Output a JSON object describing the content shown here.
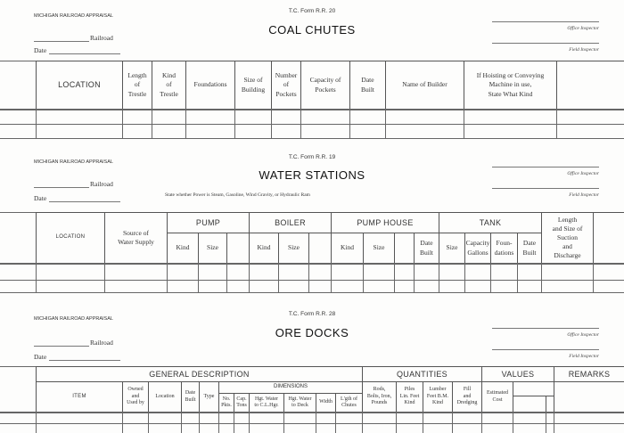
{
  "forms": [
    {
      "form_no": "T.C. Form R.R. 20",
      "org": "MICHIGAN RAILROAD APPRAISAL",
      "railroad_label": "Railroad",
      "date_label": "Date",
      "title": "COAL CHUTES",
      "office_inspector": "Office Inspector",
      "field_inspector": "Field Inspector",
      "headers": {
        "location": "LOCATION",
        "length_trestle": "Length\nof\nTrestle",
        "kind_trestle": "Kind\nof\nTrestle",
        "foundations": "Foundations",
        "size_building": "Size of\nBuilding",
        "number_pockets": "Number\nof\nPockets",
        "capacity_pockets": "Capacity of\nPockets",
        "date_built": "Date\nBuilt",
        "name_builder": "Name of Builder",
        "hoisting": "If Hoisting or Conveying\nMachine in use,\nState What Kind"
      }
    },
    {
      "form_no": "T.C. Form R.R. 19",
      "org": "MICHIGAN RAILROAD APPRAISAL",
      "railroad_label": "Railroad",
      "date_label": "Date",
      "title": "WATER STATIONS",
      "note": "State whether Power is Steam, Gasoline, Wind Gravity, or Hydraulic Ram",
      "office_inspector": "Office Inspector",
      "field_inspector": "Field Inspector",
      "headers": {
        "location": "LOCATION",
        "source": "Source of\nWater Supply",
        "pump": "PUMP",
        "pump_kind": "Kind",
        "pump_size": "Size",
        "boiler": "BOILER",
        "boiler_kind": "Kind",
        "boiler_size": "Size",
        "pump_house": "PUMP HOUSE",
        "ph_kind": "Kind",
        "ph_size": "Size",
        "ph_date_built": "Date\nBuilt",
        "tank": "TANK",
        "tank_size": "Size",
        "tank_capacity": "Capacity\nGallons",
        "tank_foundations": "Foun-\ndations",
        "tank_date_built": "Date\nBuilt",
        "suction": "Length\nand Size of\nSuction\nand\nDischarge"
      }
    },
    {
      "form_no": "T.C. Form R.R. 28",
      "org": "MICHIGAN RAILROAD APPRAISAL",
      "railroad_label": "Railroad",
      "date_label": "Date",
      "title": "ORE DOCKS",
      "office_inspector": "Office Inspector",
      "field_inspector": "Field Inspector",
      "headers": {
        "general": "GENERAL DESCRIPTION",
        "quantities": "QUANTITIES",
        "values": "VALUES",
        "remarks": "REMARKS",
        "item": "ITEM",
        "owned": "Owned\nand\nUsed by",
        "location": "Location",
        "date_built": "Date\nBuilt",
        "type": "Type",
        "dimensions": "DIMENSIONS",
        "no_pkts": "No.\nPkts.",
        "cap_tons": "Cap.\nTons",
        "hgt_water_cl": "Hgt. Water\nto C.L.Hgr.",
        "hgt_water_deck": "Hgt. Water\nto Deck",
        "width": "Width",
        "length_chutes": "L'gth of\nChutes",
        "rods": "Rods,\nBolts, Iron,\nPounds",
        "piles": "Piles\nLin. Feet\nKind",
        "lumber": "Lumber\nFeet B.M.\nKind",
        "fill": "Fill\nand\nDredging",
        "estimated_cost": "Estimated\nCost"
      }
    }
  ]
}
